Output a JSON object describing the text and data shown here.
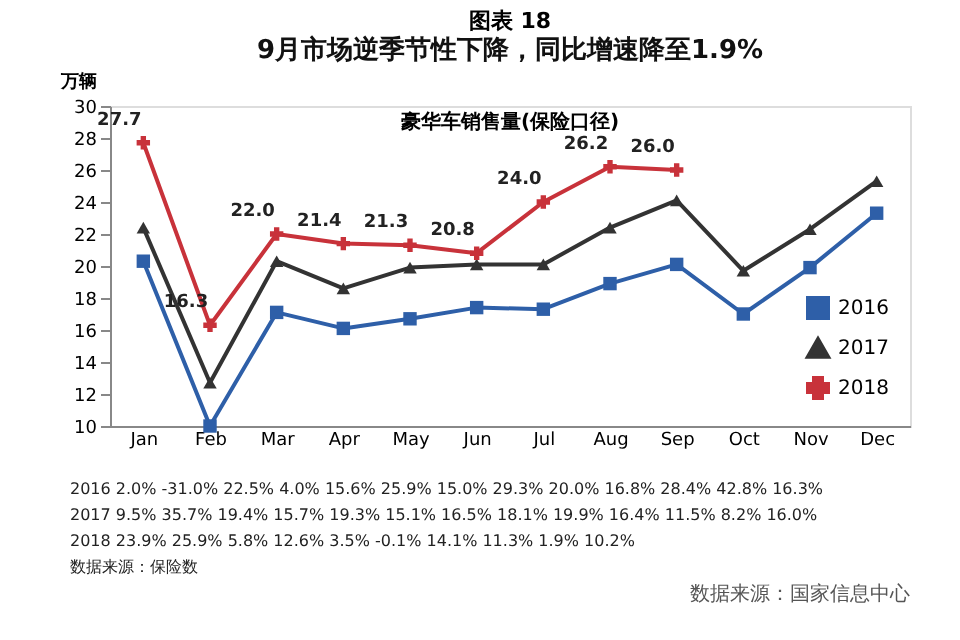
{
  "chart_data": {
    "type": "line",
    "title": "图表 18",
    "subtitle": "9月市场逆季节性下降，同比增速降至1.9%",
    "ylabel": "万辆",
    "categories": [
      "Jan",
      "Feb",
      "Mar",
      "Apr",
      "May",
      "Jun",
      "Jul",
      "Aug",
      "Sep",
      "Oct",
      "Nov",
      "Dec"
    ],
    "series": [
      {
        "name": "2016",
        "color": "#2e5fa8",
        "marker": "square",
        "values": [
          20.3,
          10.0,
          17.1,
          16.1,
          16.7,
          17.4,
          17.3,
          18.9,
          20.1,
          17.0,
          19.9,
          23.3
        ]
      },
      {
        "name": "2017",
        "color": "#333333",
        "marker": "triangle",
        "values": [
          22.4,
          12.7,
          20.3,
          18.6,
          19.9,
          20.1,
          20.1,
          22.4,
          24.1,
          19.7,
          22.3,
          25.3
        ]
      },
      {
        "name": "2018",
        "color": "#c8323a",
        "marker": "cross",
        "values": [
          27.7,
          16.3,
          22.0,
          21.4,
          21.3,
          20.8,
          24.0,
          26.2,
          26.0,
          null,
          null,
          null
        ],
        "value_labels": [
          "27.7",
          "16.3",
          "22.0",
          "21.4",
          "21.3",
          "20.8",
          "24.0",
          "26.2",
          "26.0",
          null,
          null,
          null
        ]
      }
    ],
    "ylim": [
      10,
      30
    ],
    "yticks": [
      10,
      12,
      14,
      16,
      18,
      20,
      22,
      24,
      26,
      28,
      30
    ],
    "grid": false,
    "legend": "right",
    "line_style": "solid",
    "annotations": [
      "豪华车销售量(保险口径)",
      "2016 2.0% -31.0% 22.5% 4.0% 15.6% 25.9% 15.0% 29.3% 20.0% 16.8% 28.4% 42.8% 16.3%",
      "2017 9.5% 35.7% 19.4% 15.7% 19.3% 15.1% 16.5% 18.1% 19.9% 16.4% 11.5% 8.2% 16.0%",
      "2018 23.9% 25.9% 5.8% 12.6% 3.5% -0.1% 14.1% 11.3% 1.9% 10.2%",
      "数据来源：保险数",
      "数据来源：国家信息中心"
    ]
  }
}
